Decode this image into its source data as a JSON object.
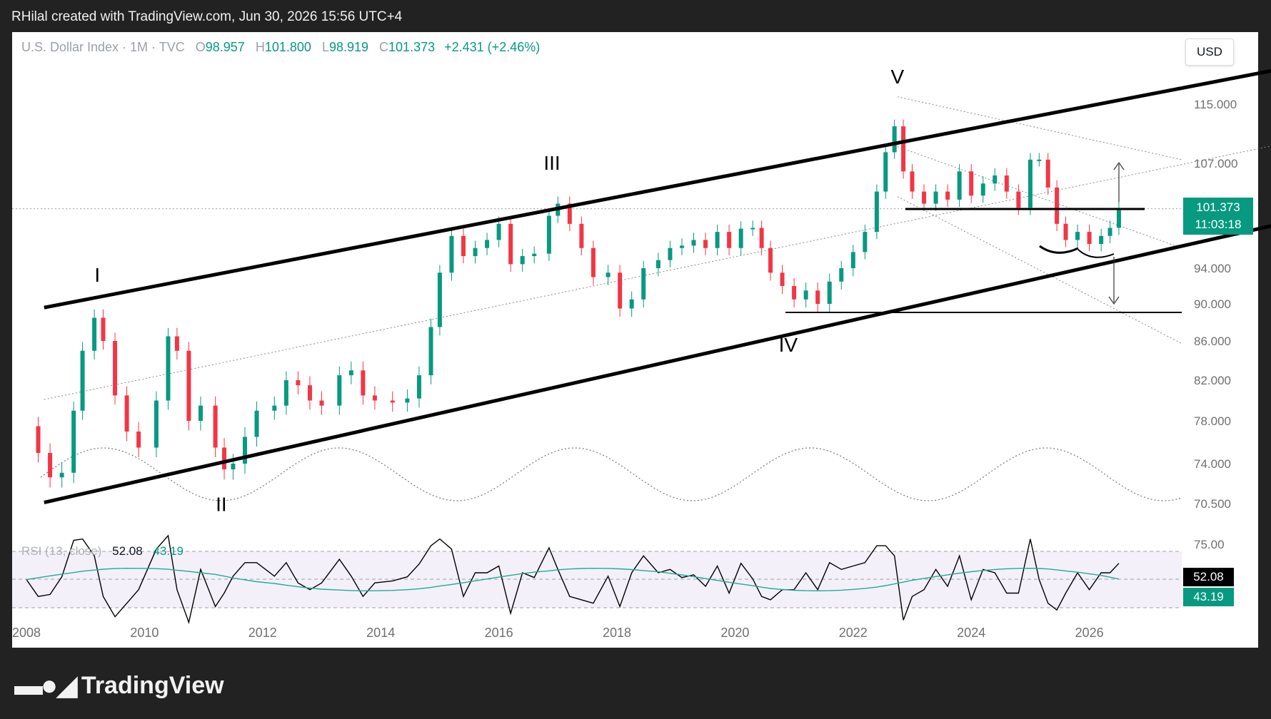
{
  "header": {
    "attribution": "RHilal created with TradingView.com, Jun 30, 2026 15:56 UTC+4"
  },
  "symbol": {
    "name": "U.S. Dollar Index · 1M · TVC",
    "open_label": "O",
    "open": "98.957",
    "high_label": "H",
    "high": "101.800",
    "low_label": "L",
    "low": "98.919",
    "close_label": "C",
    "close": "101.373",
    "change": "+2.431 (+2.46%)"
  },
  "currency_button": "USD",
  "price_tag": {
    "price": "101.373",
    "countdown": "11:03:18"
  },
  "rsi": {
    "label": "RSI (13, close)",
    "value": "52.08",
    "ma_value": "43.19",
    "upper_band": 75,
    "lower_band": 25
  },
  "brand": {
    "name": "TradingView"
  },
  "colors": {
    "up": "#089981",
    "down": "#f23645",
    "rsi_line": "#000000",
    "rsi_ma": "#22ab94",
    "rsi_band_fill": "#7e57c2"
  },
  "chart_data": {
    "type": "candlestick",
    "title": "U.S. Dollar Index · 1M · TVC",
    "x_ticks": [
      "2008",
      "2010",
      "2012",
      "2014",
      "2016",
      "2018",
      "2020",
      "2022",
      "2024",
      "2026"
    ],
    "y_ticks": [
      "115.000",
      "107.000",
      "94.000",
      "90.000",
      "86.000",
      "82.000",
      "78.000",
      "74.000",
      "70.500"
    ],
    "rsi_y_ticks": [
      "75.00"
    ],
    "ylim": [
      69,
      121
    ],
    "xlim": [
      2008.0,
      2030.0
    ],
    "wave_labels": [
      {
        "label": "I",
        "date": 2009.2,
        "price": 92.5
      },
      {
        "label": "II",
        "date": 2011.3,
        "price": 69.8
      },
      {
        "label": "III",
        "date": 2016.9,
        "price": 106.2
      },
      {
        "label": "IV",
        "date": 2020.9,
        "price": 84.9
      },
      {
        "label": "V",
        "date": 2022.75,
        "price": 117.8
      }
    ],
    "channel_upper": {
      "from": [
        2008.3,
        89.6
      ],
      "to": [
        2029.6,
        120.3
      ]
    },
    "channel_lower": {
      "from": [
        2008.3,
        70.6
      ],
      "to": [
        2029.6,
        100.1
      ]
    },
    "horizontal_levels": [
      101.0,
      89.8
    ],
    "arrow_targets": {
      "up": 107.0,
      "down": 90.0
    },
    "closes": [
      {
        "t": 2008.0,
        "c": 77.5
      },
      {
        "t": 2008.2,
        "c": 75.0
      },
      {
        "t": 2008.4,
        "c": 72.8
      },
      {
        "t": 2008.6,
        "c": 73.2
      },
      {
        "t": 2008.8,
        "c": 79.0
      },
      {
        "t": 2008.95,
        "c": 85.0
      },
      {
        "t": 2009.15,
        "c": 88.5
      },
      {
        "t": 2009.3,
        "c": 86.0
      },
      {
        "t": 2009.5,
        "c": 80.5
      },
      {
        "t": 2009.7,
        "c": 77.0
      },
      {
        "t": 2009.9,
        "c": 75.5
      },
      {
        "t": 2010.2,
        "c": 80.0
      },
      {
        "t": 2010.4,
        "c": 86.5
      },
      {
        "t": 2010.55,
        "c": 85.0
      },
      {
        "t": 2010.75,
        "c": 78.0
      },
      {
        "t": 2010.95,
        "c": 79.5
      },
      {
        "t": 2011.2,
        "c": 75.5
      },
      {
        "t": 2011.35,
        "c": 73.5
      },
      {
        "t": 2011.5,
        "c": 74.0
      },
      {
        "t": 2011.7,
        "c": 76.5
      },
      {
        "t": 2011.9,
        "c": 79.0
      },
      {
        "t": 2012.2,
        "c": 79.5
      },
      {
        "t": 2012.4,
        "c": 82.0
      },
      {
        "t": 2012.6,
        "c": 81.5
      },
      {
        "t": 2012.8,
        "c": 80.0
      },
      {
        "t": 2013.0,
        "c": 79.5
      },
      {
        "t": 2013.3,
        "c": 82.5
      },
      {
        "t": 2013.5,
        "c": 83.0
      },
      {
        "t": 2013.7,
        "c": 80.5
      },
      {
        "t": 2013.9,
        "c": 80.0
      },
      {
        "t": 2014.2,
        "c": 79.8
      },
      {
        "t": 2014.45,
        "c": 80.2
      },
      {
        "t": 2014.65,
        "c": 82.5
      },
      {
        "t": 2014.85,
        "c": 87.5
      },
      {
        "t": 2015.0,
        "c": 93.5
      },
      {
        "t": 2015.2,
        "c": 98.0
      },
      {
        "t": 2015.4,
        "c": 95.5
      },
      {
        "t": 2015.6,
        "c": 96.5
      },
      {
        "t": 2015.8,
        "c": 97.5
      },
      {
        "t": 2016.0,
        "c": 99.5
      },
      {
        "t": 2016.2,
        "c": 94.5
      },
      {
        "t": 2016.4,
        "c": 95.5
      },
      {
        "t": 2016.6,
        "c": 95.8
      },
      {
        "t": 2016.85,
        "c": 100.5
      },
      {
        "t": 2017.0,
        "c": 102.0
      },
      {
        "t": 2017.2,
        "c": 99.5
      },
      {
        "t": 2017.4,
        "c": 96.5
      },
      {
        "t": 2017.6,
        "c": 93.0
      },
      {
        "t": 2017.85,
        "c": 93.5
      },
      {
        "t": 2018.05,
        "c": 89.5
      },
      {
        "t": 2018.25,
        "c": 90.5
      },
      {
        "t": 2018.45,
        "c": 94.0
      },
      {
        "t": 2018.7,
        "c": 95.0
      },
      {
        "t": 2018.9,
        "c": 96.5
      },
      {
        "t": 2019.1,
        "c": 96.8
      },
      {
        "t": 2019.3,
        "c": 97.5
      },
      {
        "t": 2019.5,
        "c": 96.5
      },
      {
        "t": 2019.7,
        "c": 98.5
      },
      {
        "t": 2019.9,
        "c": 96.5
      },
      {
        "t": 2020.1,
        "c": 98.9
      },
      {
        "t": 2020.3,
        "c": 99.0
      },
      {
        "t": 2020.45,
        "c": 96.5
      },
      {
        "t": 2020.6,
        "c": 93.5
      },
      {
        "t": 2020.8,
        "c": 92.0
      },
      {
        "t": 2021.0,
        "c": 90.5
      },
      {
        "t": 2021.2,
        "c": 91.5
      },
      {
        "t": 2021.4,
        "c": 90.0
      },
      {
        "t": 2021.6,
        "c": 92.5
      },
      {
        "t": 2021.8,
        "c": 94.0
      },
      {
        "t": 2022.0,
        "c": 96.0
      },
      {
        "t": 2022.2,
        "c": 98.5
      },
      {
        "t": 2022.4,
        "c": 103.5
      },
      {
        "t": 2022.55,
        "c": 108.5
      },
      {
        "t": 2022.7,
        "c": 112.0
      },
      {
        "t": 2022.85,
        "c": 106.0
      },
      {
        "t": 2023.0,
        "c": 103.5
      },
      {
        "t": 2023.2,
        "c": 102.0
      },
      {
        "t": 2023.4,
        "c": 103.5
      },
      {
        "t": 2023.6,
        "c": 102.5
      },
      {
        "t": 2023.8,
        "c": 106.0
      },
      {
        "t": 2024.0,
        "c": 103.0
      },
      {
        "t": 2024.2,
        "c": 104.5
      },
      {
        "t": 2024.4,
        "c": 105.5
      },
      {
        "t": 2024.6,
        "c": 103.5
      },
      {
        "t": 2024.8,
        "c": 101.5
      },
      {
        "t": 2025.0,
        "c": 107.5
      },
      {
        "t": 2025.15,
        "c": 107.5
      },
      {
        "t": 2025.3,
        "c": 104.0
      },
      {
        "t": 2025.45,
        "c": 99.5
      },
      {
        "t": 2025.6,
        "c": 97.5
      },
      {
        "t": 2025.8,
        "c": 98.5
      },
      {
        "t": 2026.0,
        "c": 97.0
      },
      {
        "t": 2026.2,
        "c": 98.0
      },
      {
        "t": 2026.35,
        "c": 99.0
      },
      {
        "t": 2026.5,
        "c": 101.4
      }
    ]
  }
}
